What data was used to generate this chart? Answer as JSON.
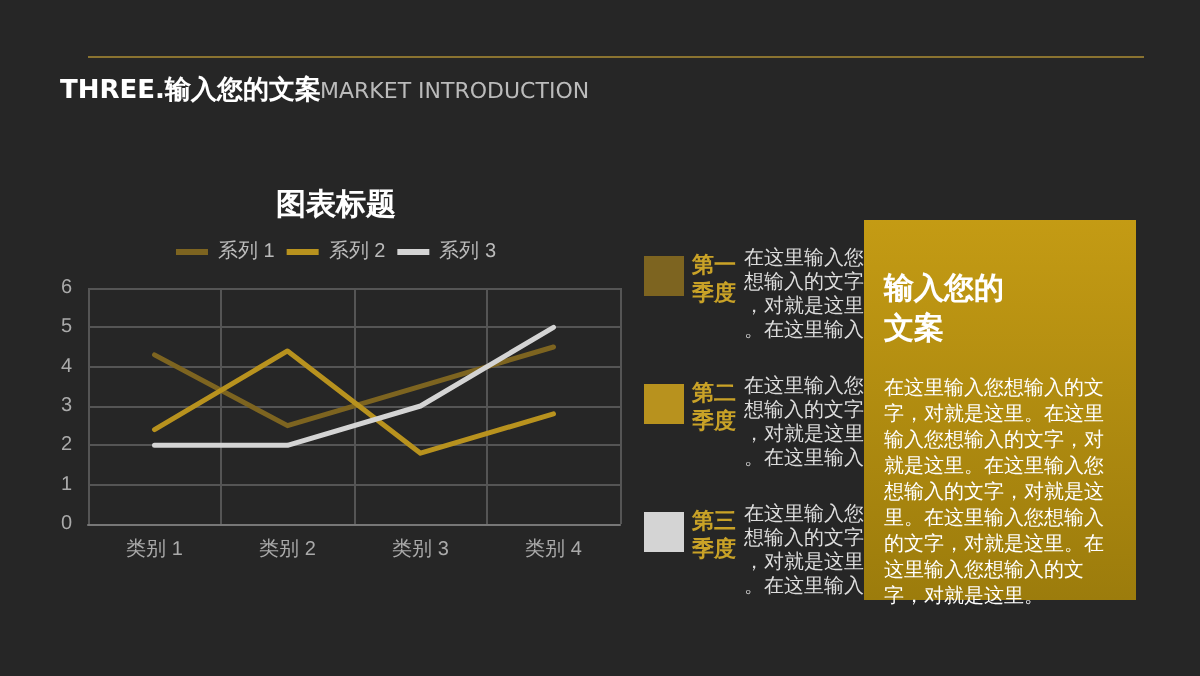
{
  "chart_data": {
    "type": "line",
    "title": "图表标题",
    "categories": [
      "类别 1",
      "类别 2",
      "类别 3",
      "类别 4"
    ],
    "series": [
      {
        "name": "系列 1",
        "color": "#7d6420",
        "values": [
          4.3,
          2.5,
          3.5,
          4.5
        ]
      },
      {
        "name": "系列 2",
        "color": "#b8921e",
        "values": [
          2.4,
          4.4,
          1.8,
          2.8
        ]
      },
      {
        "name": "系列 3",
        "color": "#d4d4d4",
        "values": [
          2,
          2,
          3,
          5
        ]
      }
    ],
    "ylim": [
      0,
      6
    ],
    "yticks": [
      0,
      1,
      2,
      3,
      4,
      5,
      6
    ],
    "grid": true,
    "legend": "top",
    "marker": "none",
    "line_style": "solid",
    "annotations": [
      "THREE.输入您的文案",
      "MARKET INTRODUCTION",
      "第一季度",
      "在这里输入您想输入的文字，对就是这里。在这里输入",
      "第二季度",
      "在这里输入您想输入的文字，对就是这里。在这里输入",
      "第三季度",
      "在这里输入您想输入的文字，对就是这里。在这里输入",
      "输入您的文案",
      "在这里输入您想输入的文字，对就是这里。在这里输入您想输入的文字，对就是这里。在这里输入您想输入的文字，对就是这里。在这里输入您想输入的文字，对就是这里。在这里输入您想输入的文字，对就是这里。"
    ]
  }
}
